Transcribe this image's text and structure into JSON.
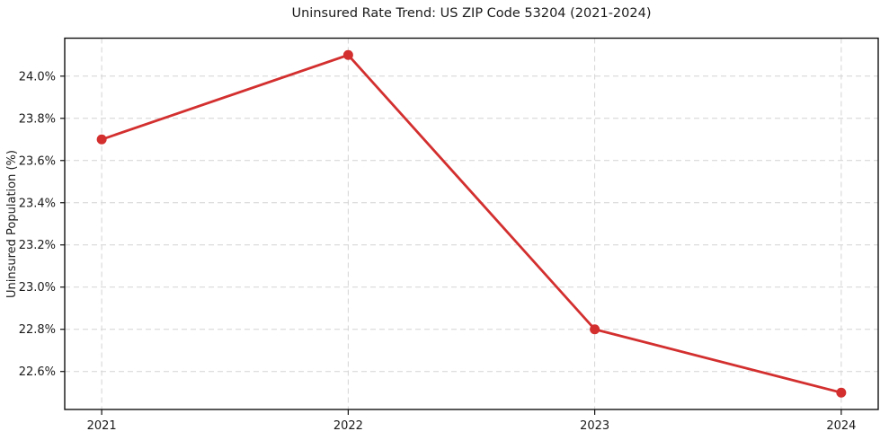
{
  "chart_data": {
    "type": "line",
    "title": "Uninsured Rate Trend: US ZIP Code 53204 (2021-2024)",
    "ylabel": "Uninsured Population (%)",
    "xlabel": "",
    "x": [
      2021,
      2022,
      2023,
      2024
    ],
    "xtick_labels": [
      "2021",
      "2022",
      "2023",
      "2024"
    ],
    "values": [
      23.7,
      24.1,
      22.8,
      22.5
    ],
    "ytick_values": [
      22.6,
      22.8,
      23.0,
      23.2,
      23.4,
      23.6,
      23.8,
      24.0
    ],
    "ytick_labels": [
      "22.6%",
      "22.8%",
      "23.0%",
      "23.2%",
      "23.4%",
      "23.6%",
      "23.8%",
      "24.0%"
    ],
    "xlim": [
      2020.85,
      2024.15
    ],
    "ylim": [
      22.42,
      24.18
    ],
    "grid": true,
    "legend": false,
    "line_color": "#d32f2f"
  }
}
